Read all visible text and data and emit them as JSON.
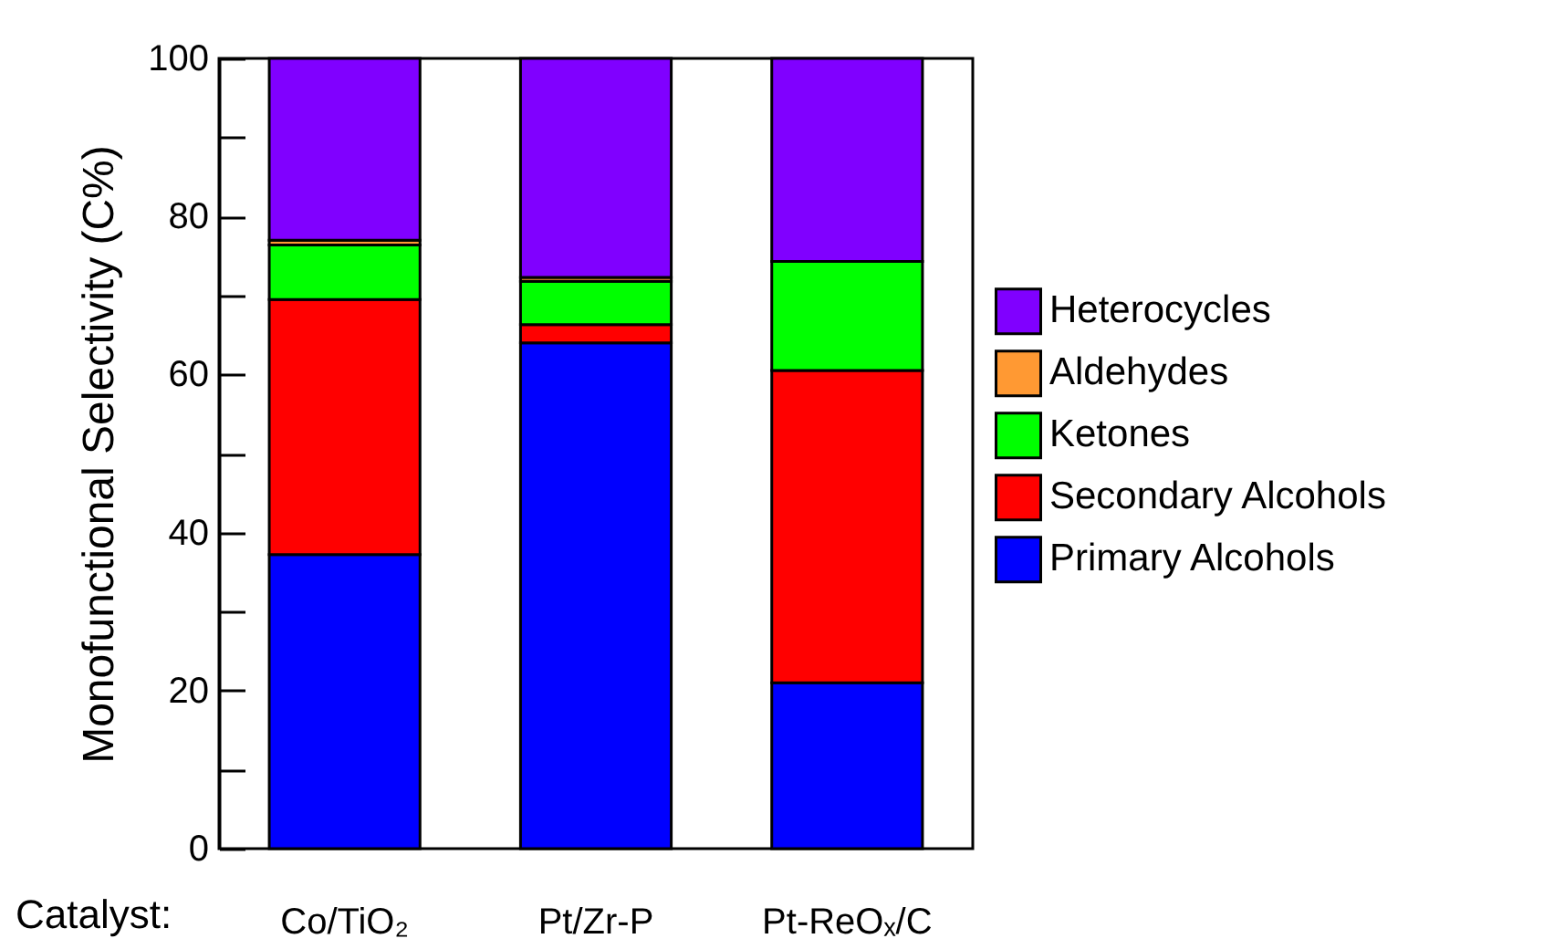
{
  "chart_data": {
    "type": "bar",
    "stacked": true,
    "xlabel": "Catalyst:",
    "ylabel": "Monofunctional Selectivity (C%)",
    "categories": [
      "Co/TiO₂",
      "Pt/Zr-P",
      "Pt-ReOₓ/C"
    ],
    "series": [
      {
        "name": "Primary Alcohols",
        "color": "#0000ff",
        "values": [
          37.2,
          64.0,
          21.0
        ]
      },
      {
        "name": "Secondary Alcohols",
        "color": "#ff0000",
        "values": [
          32.3,
          2.3,
          39.5
        ]
      },
      {
        "name": "Ketones",
        "color": "#00ff00",
        "values": [
          6.9,
          5.5,
          13.8
        ]
      },
      {
        "name": "Aldehydes",
        "color": "#ff9933",
        "values": [
          0.6,
          0.5,
          0
        ]
      },
      {
        "name": "Heterocycles",
        "color": "#8000ff",
        "values": [
          23.0,
          27.7,
          25.7
        ]
      }
    ],
    "ylim": [
      0,
      100
    ],
    "yticks": [
      0,
      {
        "value": 10,
        "label": null
      },
      20,
      {
        "value": 30,
        "label": null
      },
      40,
      {
        "value": 50,
        "label": null
      },
      60,
      {
        "value": 70,
        "label": null
      },
      80,
      {
        "value": 90,
        "label": null
      },
      100
    ],
    "grid": false,
    "legend": "right"
  }
}
